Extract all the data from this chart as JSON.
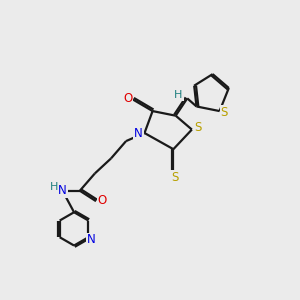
{
  "background_color": "#ebebeb",
  "bond_color": "#1a1a1a",
  "atom_colors": {
    "O": "#e00000",
    "N": "#0000e0",
    "S": "#b8a000",
    "H": "#208080",
    "C": "#1a1a1a"
  },
  "figsize": [
    3.0,
    3.0
  ],
  "dpi": 100
}
